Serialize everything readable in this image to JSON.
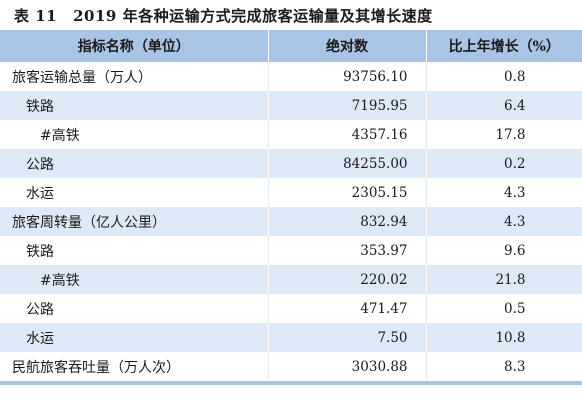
{
  "title": {
    "number": "表 11",
    "text": "2019 年各种运输方式完成旅客运输量及其增长速度"
  },
  "columns": [
    "指标名称（单位）",
    "绝对数",
    "比上年增长（%）"
  ],
  "rows": [
    {
      "name": "旅客运输总量（万人）",
      "value": "93756.10",
      "growth": "0.8"
    },
    {
      "name": "铁路",
      "value": "7195.95",
      "growth": "6.4"
    },
    {
      "name": "#高铁",
      "value": "4357.16",
      "growth": "17.8"
    },
    {
      "name": "公路",
      "value": "84255.00",
      "growth": "0.2"
    },
    {
      "name": "水运",
      "value": "2305.15",
      "growth": "4.3"
    },
    {
      "name": "旅客周转量（亿人公里）",
      "value": "832.94",
      "growth": "4.3"
    },
    {
      "name": "铁路",
      "value": "353.97",
      "growth": "9.6"
    },
    {
      "name": "#高铁",
      "value": "220.02",
      "growth": "21.8"
    },
    {
      "name": "公路",
      "value": "471.47",
      "growth": "0.5"
    },
    {
      "name": "水运",
      "value": "7.50",
      "growth": "10.8"
    },
    {
      "name": "民航旅客吞吐量（万人次）",
      "value": "3030.88",
      "growth": "8.3"
    }
  ],
  "colors": {
    "header_bg": "#a9c4e4",
    "shaded_row_bg": "#dde9f6",
    "text": "#1a1a1a"
  }
}
